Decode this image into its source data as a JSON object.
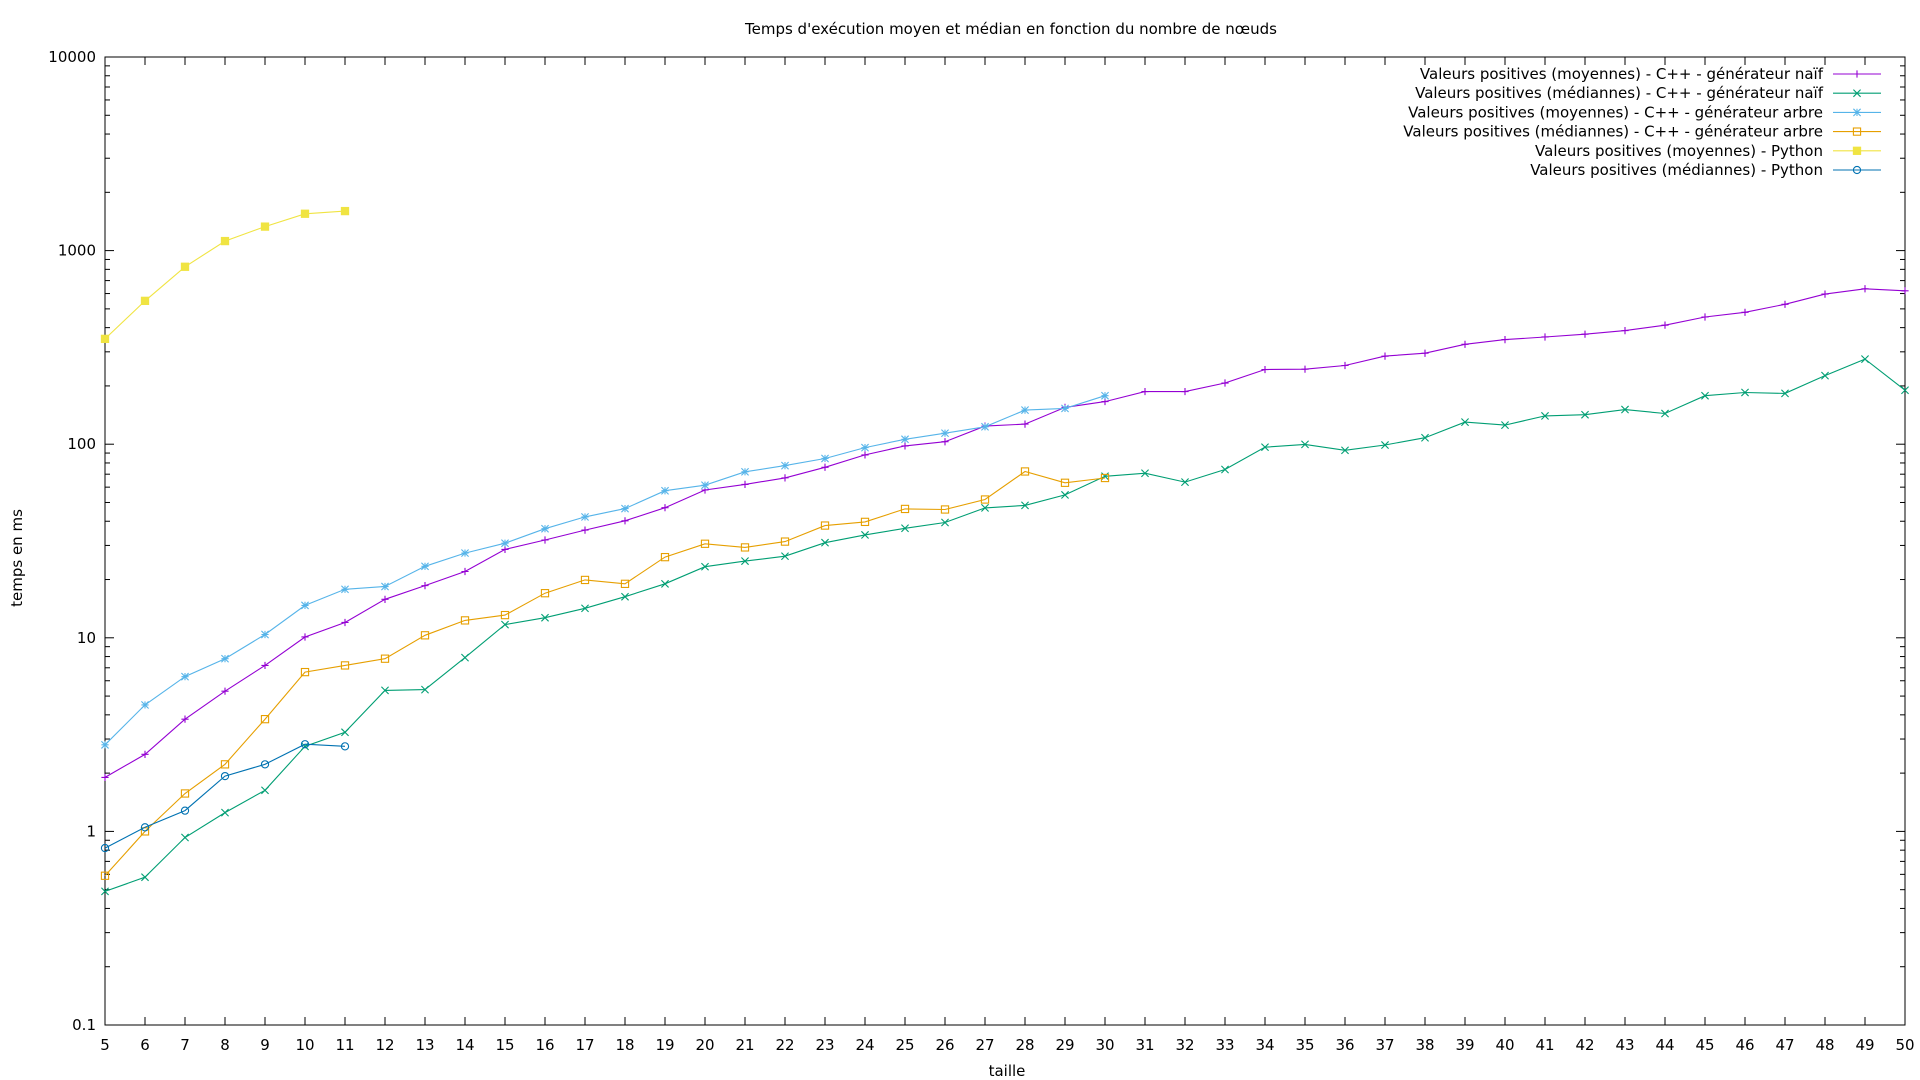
{
  "chart_data": {
    "type": "line",
    "title": "Temps d'exécution moyen et médian en fonction du nombre de nœuds",
    "xlabel": "taille",
    "ylabel": "temps en ms",
    "xlim": [
      5,
      50
    ],
    "ylim": [
      0.1,
      10000
    ],
    "y_scale": "log",
    "grid": false,
    "legend_position": "top-right",
    "x_ticks": [
      5,
      6,
      7,
      8,
      9,
      10,
      11,
      12,
      13,
      14,
      15,
      16,
      17,
      18,
      19,
      20,
      21,
      22,
      23,
      24,
      25,
      26,
      27,
      28,
      29,
      30,
      31,
      32,
      33,
      34,
      35,
      36,
      37,
      38,
      39,
      40,
      41,
      42,
      43,
      44,
      45,
      46,
      47,
      48,
      49,
      50
    ],
    "y_ticks": [
      {
        "value": 0.1,
        "label": "0.1"
      },
      {
        "value": 1,
        "label": "1"
      },
      {
        "value": 10,
        "label": "10"
      },
      {
        "value": 100,
        "label": "100"
      },
      {
        "value": 1000,
        "label": "1000"
      },
      {
        "value": 10000,
        "label": "10000"
      }
    ],
    "series": [
      {
        "name": "Valeurs positives (moyennes) - C++ - générateur naïf",
        "color": "#9400d3",
        "marker": "plus",
        "x": [
          5,
          6,
          7,
          8,
          9,
          10,
          11,
          12,
          13,
          14,
          15,
          16,
          17,
          18,
          19,
          20,
          21,
          22,
          23,
          24,
          25,
          26,
          27,
          28,
          29,
          30,
          31,
          32,
          33,
          34,
          35,
          36,
          37,
          38,
          39,
          40,
          41,
          42,
          43,
          44,
          45,
          46,
          47,
          48,
          49,
          50
        ],
        "y": [
          1.9,
          2.5,
          3.8,
          5.3,
          7.2,
          10.1,
          12,
          15.8,
          18.6,
          22,
          28.6,
          32,
          36,
          40.2,
          47,
          58,
          62,
          67,
          76,
          88,
          98,
          103,
          124,
          127,
          155,
          166,
          187,
          187,
          207,
          243,
          244,
          255,
          285,
          295,
          328,
          347,
          358,
          370,
          386,
          412,
          454,
          480,
          528,
          596,
          635,
          620
        ]
      },
      {
        "name": "Valeurs positives (médiannes) - C++ - générateur naïf",
        "color": "#009e73",
        "marker": "cross",
        "x": [
          5,
          6,
          7,
          8,
          9,
          10,
          11,
          12,
          13,
          14,
          15,
          16,
          17,
          18,
          19,
          20,
          21,
          22,
          23,
          24,
          25,
          26,
          27,
          28,
          29,
          30,
          31,
          32,
          33,
          34,
          35,
          36,
          37,
          38,
          39,
          40,
          41,
          42,
          43,
          44,
          45,
          46,
          47,
          48,
          49,
          50
        ],
        "y": [
          0.49,
          0.58,
          0.93,
          1.25,
          1.63,
          2.75,
          3.25,
          5.35,
          5.4,
          7.9,
          11.7,
          12.7,
          14.2,
          16.3,
          19,
          23.3,
          24.9,
          26.4,
          31,
          34,
          36.8,
          39.4,
          46.9,
          48.3,
          54.7,
          68.3,
          70.8,
          63.7,
          74,
          96.5,
          99.8,
          93,
          99,
          108,
          130,
          125.5,
          140,
          142,
          151,
          144,
          178,
          185,
          183,
          226,
          275,
          190
        ]
      },
      {
        "name": "Valeurs positives (moyennes) - C++ - générateur arbre",
        "color": "#56b4e9",
        "marker": "star",
        "x": [
          5,
          6,
          7,
          8,
          9,
          10,
          11,
          12,
          13,
          14,
          15,
          16,
          17,
          18,
          19,
          20,
          21,
          22,
          23,
          24,
          25,
          26,
          27,
          28,
          29,
          30
        ],
        "y": [
          2.8,
          4.5,
          6.3,
          7.8,
          10.4,
          14.7,
          17.8,
          18.4,
          23.4,
          27.4,
          30.8,
          36.6,
          42.1,
          46.5,
          57.5,
          61.4,
          72,
          77.5,
          84.4,
          96,
          106,
          114,
          123,
          150,
          153,
          178
        ]
      },
      {
        "name": "Valeurs positives (médiannes) - C++ - générateur arbre",
        "color": "#e69f00",
        "marker": "square",
        "x": [
          5,
          6,
          7,
          8,
          9,
          10,
          11,
          12,
          13,
          14,
          15,
          16,
          17,
          18,
          19,
          20,
          21,
          22,
          23,
          24,
          25,
          26,
          27,
          28,
          29,
          30
        ],
        "y": [
          0.59,
          1.0,
          1.57,
          2.22,
          3.8,
          6.65,
          7.2,
          7.8,
          10.3,
          12.3,
          13.1,
          17,
          19.9,
          19,
          26.1,
          30.6,
          29.3,
          31.4,
          38,
          39.7,
          46.3,
          46,
          51.8,
          72.3,
          63.2,
          66.9
        ]
      },
      {
        "name": "Valeurs positives (moyennes) - Python",
        "color": "#f0e442",
        "marker": "filled-square",
        "x": [
          5,
          6,
          7,
          8,
          9,
          10,
          11
        ],
        "y": [
          350,
          550,
          825,
          1120,
          1330,
          1550,
          1600
        ]
      },
      {
        "name": "Valeurs positives (médiannes) - Python",
        "color": "#0072b2",
        "marker": "circle",
        "x": [
          5,
          6,
          7,
          8,
          9,
          10,
          11
        ],
        "y": [
          0.82,
          1.05,
          1.28,
          1.93,
          2.22,
          2.82,
          2.75
        ]
      }
    ]
  }
}
